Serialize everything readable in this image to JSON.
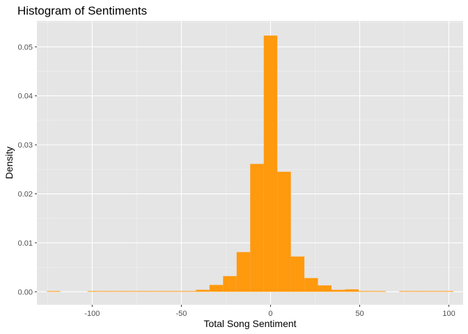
{
  "chart_data": {
    "type": "bar",
    "title": "Histogram of Sentiments",
    "xlabel": "Total Song Sentiment",
    "ylabel": "Density",
    "xlim": [
      -131,
      108
    ],
    "ylim": [
      -0.00265,
      0.0553
    ],
    "x_ticks": [
      -100,
      -50,
      0,
      50,
      100
    ],
    "y_ticks": [
      0.0,
      0.01,
      0.02,
      0.03,
      0.04,
      0.05
    ],
    "x_tick_labels": [
      "-100",
      "-50",
      "0",
      "50",
      "100"
    ],
    "y_tick_labels": [
      "0.00",
      "0.01",
      "0.02",
      "0.03",
      "0.04",
      "0.05"
    ],
    "bin_width": 7.6,
    "bins": [
      {
        "x": -121.6,
        "density": 2e-05
      },
      {
        "x": -114.0,
        "density": 0.0
      },
      {
        "x": -106.4,
        "density": 0.0
      },
      {
        "x": -98.8,
        "density": 2e-05
      },
      {
        "x": -91.2,
        "density": 2e-05
      },
      {
        "x": -83.6,
        "density": 2e-05
      },
      {
        "x": -76.0,
        "density": 2e-05
      },
      {
        "x": -68.4,
        "density": 2e-05
      },
      {
        "x": -60.8,
        "density": 2e-05
      },
      {
        "x": -53.2,
        "density": 4e-05
      },
      {
        "x": -45.6,
        "density": 8e-05
      },
      {
        "x": -38.0,
        "density": 0.0004
      },
      {
        "x": -30.4,
        "density": 0.0014
      },
      {
        "x": -22.8,
        "density": 0.0032
      },
      {
        "x": -15.2,
        "density": 0.0081
      },
      {
        "x": -7.6,
        "density": 0.0261
      },
      {
        "x": 0.0,
        "density": 0.0523
      },
      {
        "x": 7.6,
        "density": 0.0245
      },
      {
        "x": 15.2,
        "density": 0.0072
      },
      {
        "x": 22.8,
        "density": 0.0028
      },
      {
        "x": 30.4,
        "density": 0.0013
      },
      {
        "x": 38.0,
        "density": 0.0004
      },
      {
        "x": 45.6,
        "density": 0.0005
      },
      {
        "x": 53.2,
        "density": 0.00015
      },
      {
        "x": 60.8,
        "density": 2e-05
      },
      {
        "x": 68.4,
        "density": 0.0
      },
      {
        "x": 76.0,
        "density": 2e-05
      },
      {
        "x": 83.6,
        "density": 2e-05
      },
      {
        "x": 91.2,
        "density": 2e-05
      },
      {
        "x": 98.8,
        "density": 2e-05
      }
    ],
    "grid": true,
    "legend": "none"
  },
  "colors": {
    "panel_background": "#e5e5e5",
    "grid_major": "#ffffff",
    "grid_minor": "#f1f1f1",
    "bar_fill": "#ff990d",
    "tick_text": "#4d4d4d",
    "tick_mark": "#333333"
  }
}
